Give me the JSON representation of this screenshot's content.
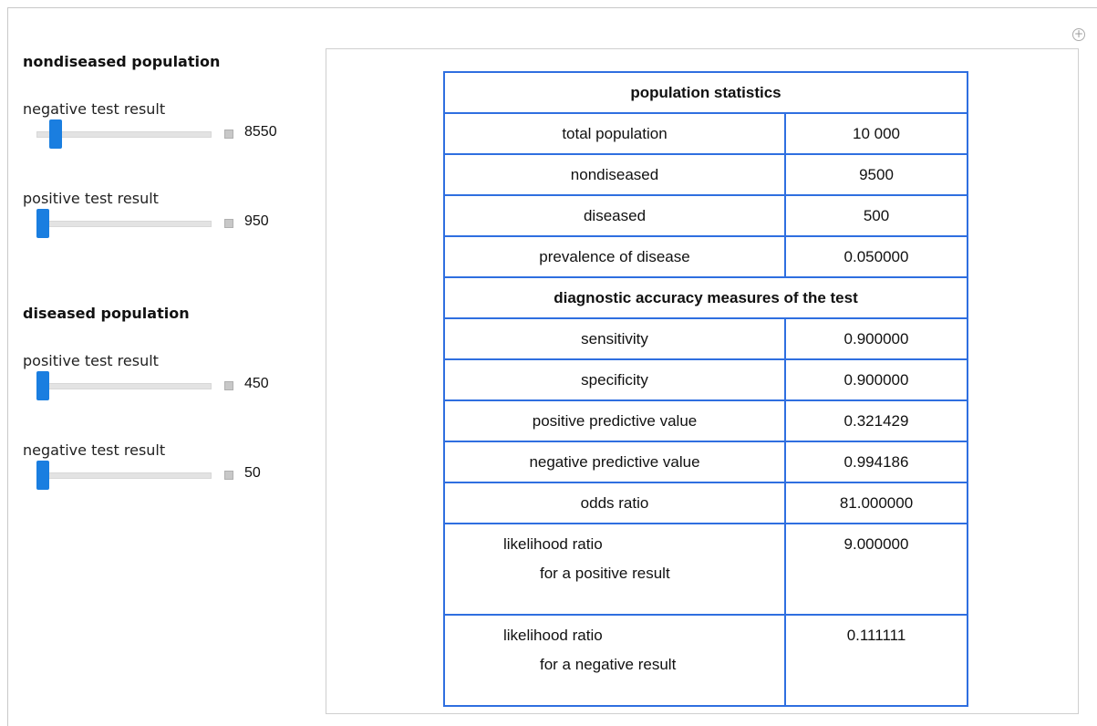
{
  "controls": [
    {
      "title": "nondiseased population",
      "sliders": [
        {
          "label": "negative test result",
          "value": "8550"
        },
        {
          "label": "positive test result",
          "value": "950"
        }
      ]
    },
    {
      "title": "diseased population",
      "sliders": [
        {
          "label": "positive test result",
          "value": "450"
        },
        {
          "label": "negative test result",
          "value": "50"
        }
      ]
    }
  ],
  "table": {
    "sections": [
      {
        "heading": "population statistics",
        "rows": [
          [
            [
              "total population"
            ],
            "10 000"
          ],
          [
            [
              "nondiseased"
            ],
            "9500"
          ],
          [
            [
              "diseased"
            ],
            "500"
          ],
          [
            [
              "prevalence of disease"
            ],
            "0.050000"
          ]
        ]
      },
      {
        "heading": "diagnostic accuracy measures of the test",
        "rows": [
          [
            [
              "sensitivity"
            ],
            "0.900000"
          ],
          [
            [
              "specificity"
            ],
            "0.900000"
          ],
          [
            [
              "positive predictive value"
            ],
            "0.321429"
          ],
          [
            [
              "negative predictive value"
            ],
            "0.994186"
          ],
          [
            [
              "odds ratio"
            ],
            "81.000000"
          ],
          [
            [
              "likelihood ratio",
              "for a positive result"
            ],
            "9.000000"
          ],
          [
            [
              "likelihood ratio",
              "for a negative result"
            ],
            "0.111111"
          ]
        ]
      }
    ]
  }
}
